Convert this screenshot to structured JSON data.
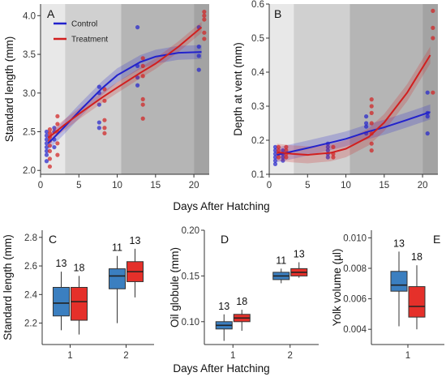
{
  "figure": {
    "shared_xlabel": "Days After Hatching"
  },
  "colors": {
    "control": "#2222cc",
    "treatment": "#d11f1f",
    "control_box": "#3b7fc0",
    "treatment_box": "#e5302a",
    "bg_light": "#e8e8e8",
    "bg_mid": "#d0d0d0",
    "bg_dark": "#b5b5b5",
    "bg_darkest": "#a3a3a3"
  },
  "chart_data": [
    {
      "id": "A",
      "type": "scatter",
      "panel_label": "A",
      "ylabel": "Standard length (mm)",
      "xlabel": "",
      "xlim": [
        0,
        22
      ],
      "ylim": [
        1.95,
        4.15
      ],
      "xticks": [
        0,
        5,
        10,
        15,
        20
      ],
      "yticks": [
        2.0,
        2.5,
        3.0,
        3.5,
        4.0
      ],
      "ytick_labels": [
        "2.0",
        "2.5",
        "3.0",
        "3.5",
        "4.0"
      ],
      "legend": {
        "position": "top-left",
        "entries": [
          "Control",
          "Treatment"
        ]
      },
      "shading": [
        [
          0,
          3.2,
          "light"
        ],
        [
          3.2,
          10.5,
          "mid"
        ],
        [
          10.5,
          20,
          "dark"
        ],
        [
          20,
          22,
          "darkest"
        ]
      ],
      "series": [
        {
          "name": "Control",
          "color_key": "control",
          "points": [
            [
              1,
              2.12
            ],
            [
              1,
              2.2
            ],
            [
              1,
              2.25
            ],
            [
              1,
              2.3
            ],
            [
              1,
              2.35
            ],
            [
              1,
              2.4
            ],
            [
              1,
              2.45
            ],
            [
              1,
              2.5
            ],
            [
              2,
              2.3
            ],
            [
              2,
              2.4
            ],
            [
              2,
              2.5
            ],
            [
              2,
              2.55
            ],
            [
              8,
              2.55
            ],
            [
              8,
              2.62
            ],
            [
              8,
              2.85
            ],
            [
              8,
              3.0
            ],
            [
              8,
              3.08
            ],
            [
              13,
              3.1
            ],
            [
              13,
              3.2
            ],
            [
              13,
              3.35
            ],
            [
              13,
              3.85
            ],
            [
              21,
              3.3
            ],
            [
              21,
              3.48
            ],
            [
              21,
              3.6
            ],
            [
              21,
              3.85
            ]
          ],
          "curve": [
            [
              1,
              2.35
            ],
            [
              3,
              2.55
            ],
            [
              5,
              2.76
            ],
            [
              8,
              3.06
            ],
            [
              10,
              3.23
            ],
            [
              13,
              3.4
            ],
            [
              15,
              3.47
            ],
            [
              18,
              3.52
            ],
            [
              21,
              3.53
            ]
          ],
          "band": 0.09
        },
        {
          "name": "Treatment",
          "color_key": "treatment",
          "points": [
            [
              1,
              2.05
            ],
            [
              1,
              2.15
            ],
            [
              1,
              2.25
            ],
            [
              1,
              2.32
            ],
            [
              1,
              2.38
            ],
            [
              1,
              2.43
            ],
            [
              1,
              2.48
            ],
            [
              1,
              2.53
            ],
            [
              2,
              2.2
            ],
            [
              2,
              2.35
            ],
            [
              2,
              2.5
            ],
            [
              2,
              2.6
            ],
            [
              2,
              2.7
            ],
            [
              8,
              2.48
            ],
            [
              8,
              2.55
            ],
            [
              8,
              2.65
            ],
            [
              8,
              2.9
            ],
            [
              8,
              3.05
            ],
            [
              13,
              2.67
            ],
            [
              13,
              2.85
            ],
            [
              13,
              2.92
            ],
            [
              13,
              3.22
            ],
            [
              13,
              3.35
            ],
            [
              13,
              3.45
            ],
            [
              21,
              3.7
            ],
            [
              21,
              3.78
            ],
            [
              21,
              3.95
            ],
            [
              21,
              4.0
            ],
            [
              21,
              4.05
            ]
          ],
          "curve": [
            [
              1,
              2.42
            ],
            [
              3,
              2.58
            ],
            [
              5,
              2.73
            ],
            [
              8,
              2.94
            ],
            [
              10,
              3.07
            ],
            [
              13,
              3.26
            ],
            [
              15,
              3.38
            ],
            [
              18,
              3.6
            ],
            [
              21,
              3.85
            ]
          ],
          "band": 0.07
        }
      ]
    },
    {
      "id": "B",
      "type": "scatter",
      "panel_label": "B",
      "ylabel": "Depth at vent (mm)",
      "xlabel": "",
      "xlim": [
        0,
        22
      ],
      "ylim": [
        0.1,
        0.6
      ],
      "xticks": [
        0,
        5,
        10,
        15,
        20
      ],
      "yticks": [
        0.1,
        0.2,
        0.3,
        0.4,
        0.5,
        0.6
      ],
      "ytick_labels": [
        "0.1",
        "0.2",
        "0.3",
        "0.4",
        "0.5",
        "0.6"
      ],
      "shading": [
        [
          0,
          3.2,
          "light"
        ],
        [
          3.2,
          10.5,
          "mid"
        ],
        [
          10.5,
          20,
          "dark"
        ],
        [
          20,
          22,
          "darkest"
        ]
      ],
      "series": [
        {
          "name": "Control",
          "color_key": "control",
          "points": [
            [
              1,
              0.13
            ],
            [
              1,
              0.14
            ],
            [
              1,
              0.15
            ],
            [
              1,
              0.16
            ],
            [
              1,
              0.17
            ],
            [
              1,
              0.18
            ],
            [
              2,
              0.14
            ],
            [
              2,
              0.15
            ],
            [
              2,
              0.16
            ],
            [
              2,
              0.17
            ],
            [
              8,
              0.15
            ],
            [
              8,
              0.16
            ],
            [
              8,
              0.17
            ],
            [
              8,
              0.18
            ],
            [
              8,
              0.19
            ],
            [
              13,
              0.22
            ],
            [
              13,
              0.24
            ],
            [
              13,
              0.25
            ],
            [
              13,
              0.27
            ],
            [
              21,
              0.22
            ],
            [
              21,
              0.27
            ],
            [
              21,
              0.28
            ],
            [
              21,
              0.34
            ]
          ],
          "curve": [
            [
              1,
              0.157
            ],
            [
              3,
              0.167
            ],
            [
              5,
              0.177
            ],
            [
              8,
              0.193
            ],
            [
              10,
              0.204
            ],
            [
              13,
              0.226
            ],
            [
              15,
              0.238
            ],
            [
              18,
              0.26
            ],
            [
              21,
              0.283
            ]
          ],
          "band": 0.022
        },
        {
          "name": "Treatment",
          "color_key": "treatment",
          "points": [
            [
              1,
              0.15
            ],
            [
              1,
              0.16
            ],
            [
              1,
              0.17
            ],
            [
              1,
              0.18
            ],
            [
              2,
              0.15
            ],
            [
              2,
              0.16
            ],
            [
              2,
              0.17
            ],
            [
              2,
              0.18
            ],
            [
              8,
              0.15
            ],
            [
              8,
              0.16
            ],
            [
              8,
              0.18
            ],
            [
              13,
              0.17
            ],
            [
              13,
              0.19
            ],
            [
              13,
              0.22
            ],
            [
              13,
              0.25
            ],
            [
              13,
              0.28
            ],
            [
              13,
              0.3
            ],
            [
              13,
              0.32
            ],
            [
              21,
              0.34
            ],
            [
              21,
              0.5
            ],
            [
              21,
              0.53
            ],
            [
              21,
              0.58
            ]
          ],
          "curve": [
            [
              1,
              0.165
            ],
            [
              3,
              0.16
            ],
            [
              5,
              0.157
            ],
            [
              8,
              0.163
            ],
            [
              10,
              0.175
            ],
            [
              13,
              0.21
            ],
            [
              15,
              0.252
            ],
            [
              18,
              0.34
            ],
            [
              21,
              0.45
            ]
          ],
          "band": 0.025
        }
      ]
    },
    {
      "id": "C",
      "type": "box",
      "panel_label": "C",
      "ylabel": "Standard length (mm)",
      "xlabel": "",
      "ylim": [
        2.05,
        2.85
      ],
      "yticks": [
        2.2,
        2.4,
        2.6,
        2.8
      ],
      "ytick_labels": [
        "2.2",
        "2.4",
        "2.6",
        "2.8"
      ],
      "categories": [
        "1",
        "2"
      ],
      "boxes": [
        {
          "category": "1",
          "group": "Control",
          "min": 2.15,
          "q1": 2.25,
          "median": 2.34,
          "q3": 2.45,
          "max": 2.56,
          "n": "13"
        },
        {
          "category": "1",
          "group": "Treatment",
          "min": 2.12,
          "q1": 2.22,
          "median": 2.35,
          "q3": 2.45,
          "max": 2.53,
          "n": "18"
        },
        {
          "category": "2",
          "group": "Control",
          "min": 2.2,
          "q1": 2.44,
          "median": 2.53,
          "q3": 2.58,
          "max": 2.67,
          "n": "11"
        },
        {
          "category": "2",
          "group": "Treatment",
          "min": 2.38,
          "q1": 2.49,
          "median": 2.56,
          "q3": 2.63,
          "max": 2.72,
          "n": "13"
        }
      ]
    },
    {
      "id": "D",
      "type": "box",
      "panel_label": "D",
      "ylabel": "Oil globule (mm)",
      "xlabel": "",
      "ylim": [
        0.075,
        0.2
      ],
      "yticks": [
        0.1,
        0.15,
        0.2
      ],
      "ytick_labels": [
        "0.10",
        "0.15",
        "0.20"
      ],
      "categories": [
        "1",
        "2"
      ],
      "boxes": [
        {
          "category": "1",
          "group": "Control",
          "min": 0.079,
          "q1": 0.092,
          "median": 0.096,
          "q3": 0.1,
          "max": 0.108,
          "n": "13"
        },
        {
          "category": "1",
          "group": "Treatment",
          "min": 0.09,
          "q1": 0.1,
          "median": 0.104,
          "q3": 0.108,
          "max": 0.113,
          "n": "18"
        },
        {
          "category": "2",
          "group": "Control",
          "min": 0.142,
          "q1": 0.146,
          "median": 0.15,
          "q3": 0.154,
          "max": 0.158,
          "n": "11"
        },
        {
          "category": "2",
          "group": "Treatment",
          "min": 0.148,
          "q1": 0.15,
          "median": 0.154,
          "q3": 0.158,
          "max": 0.165,
          "n": "13"
        }
      ]
    },
    {
      "id": "E",
      "type": "box",
      "panel_label": "E",
      "ylabel": "Yolk volume (µl)",
      "xlabel": "",
      "ylim": [
        0.003,
        0.0105
      ],
      "yticks": [
        0.004,
        0.006,
        0.008,
        0.01
      ],
      "ytick_labels": [
        "0.004",
        "0.006",
        "0.008",
        "0.010"
      ],
      "categories": [
        "1"
      ],
      "boxes": [
        {
          "category": "1",
          "group": "Control",
          "min": 0.0042,
          "q1": 0.0065,
          "median": 0.0069,
          "q3": 0.0078,
          "max": 0.0091,
          "n": "13"
        },
        {
          "category": "1",
          "group": "Treatment",
          "min": 0.004,
          "q1": 0.0048,
          "median": 0.0055,
          "q3": 0.0068,
          "max": 0.0082,
          "n": "18"
        }
      ]
    }
  ]
}
